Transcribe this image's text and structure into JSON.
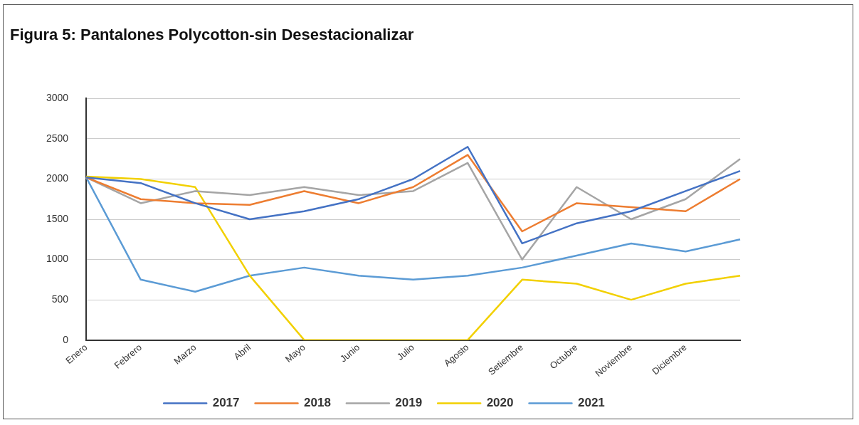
{
  "chart_data": {
    "type": "line",
    "title": "Figura 5: Pantalones Polycotton-sin Desestacionalizar",
    "categories": [
      "Enero",
      "Febrero",
      "Marzo",
      "Abril",
      "Mayo",
      "Junio",
      "Julio",
      "Agosto",
      "Setiembre",
      "Octubre",
      "Noviembre",
      "Diciembre",
      null
    ],
    "series": [
      {
        "name": "2017",
        "color": "#4472c4",
        "values": [
          2020,
          1950,
          1700,
          1500,
          1600,
          1750,
          2000,
          2400,
          1200,
          1450,
          1600,
          1850,
          2100
        ]
      },
      {
        "name": "2018",
        "color": "#ed7d31",
        "values": [
          2020,
          1750,
          1700,
          1680,
          1850,
          1700,
          1900,
          2300,
          1350,
          1700,
          1650,
          1600,
          2000
        ]
      },
      {
        "name": "2019",
        "color": "#a5a5a5",
        "values": [
          2020,
          1700,
          1850,
          1800,
          1900,
          1800,
          1850,
          2200,
          1000,
          1900,
          1500,
          1750,
          2250
        ]
      },
      {
        "name": "2020",
        "color": "#f2d000",
        "values": [
          2030,
          2000,
          1900,
          800,
          0,
          0,
          0,
          0,
          750,
          700,
          500,
          700,
          800
        ]
      },
      {
        "name": "2021",
        "color": "#5b9bd5",
        "values": [
          2020,
          750,
          600,
          800,
          900,
          800,
          750,
          800,
          900,
          1050,
          1200,
          1100,
          1250
        ]
      }
    ],
    "ylim": [
      0,
      3000
    ],
    "yticks": [
      0,
      500,
      1000,
      1500,
      2000,
      2500,
      3000
    ],
    "grid": "y",
    "legend": "bottom",
    "marker": "none",
    "line_style": "solid"
  }
}
